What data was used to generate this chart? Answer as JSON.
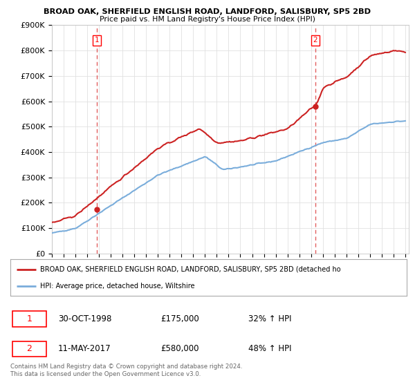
{
  "title1": "BROAD OAK, SHERFIELD ENGLISH ROAD, LANDFORD, SALISBURY, SP5 2BD",
  "title2": "Price paid vs. HM Land Registry's House Price Index (HPI)",
  "ylim": [
    0,
    900000
  ],
  "yticks": [
    0,
    100000,
    200000,
    300000,
    400000,
    500000,
    600000,
    700000,
    800000,
    900000
  ],
  "ytick_labels": [
    "£0",
    "£100K",
    "£200K",
    "£300K",
    "£400K",
    "£500K",
    "£600K",
    "£700K",
    "£800K",
    "£900K"
  ],
  "sale1_x": 1998.83,
  "sale1_price": 175000,
  "sale2_x": 2017.37,
  "sale2_price": 580000,
  "vline_color": "#dd4444",
  "hpi_line_color": "#7aaddb",
  "price_line_color": "#cc2222",
  "legend_label1": "BROAD OAK, SHERFIELD ENGLISH ROAD, LANDFORD, SALISBURY, SP5 2BD (detached ho",
  "legend_label2": "HPI: Average price, detached house, Wiltshire",
  "footer": "Contains HM Land Registry data © Crown copyright and database right 2024.\nThis data is licensed under the Open Government Licence v3.0.",
  "background_color": "#ffffff",
  "grid_color": "#e0e0e0"
}
